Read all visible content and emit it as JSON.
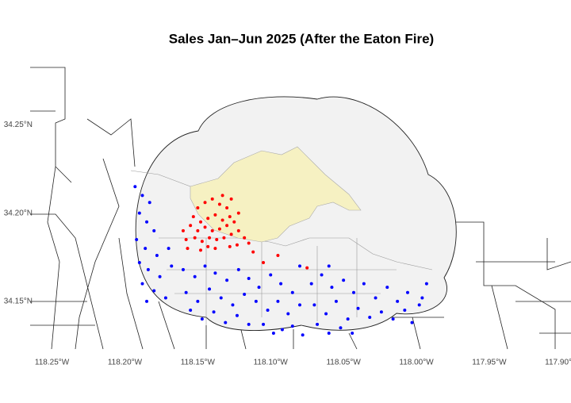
{
  "chart_data": {
    "type": "scatter",
    "title": "Sales Jan–Jun 2025 (After the Eaton Fire)",
    "xlim": [
      -118.265,
      -117.895
    ],
    "ylim": [
      34.123,
      34.287
    ],
    "grid": false,
    "xticks": [
      {
        "value": -118.25,
        "label": "118.25°W"
      },
      {
        "value": -118.2,
        "label": "118.20°W"
      },
      {
        "value": -118.15,
        "label": "118.15°W"
      },
      {
        "value": -118.1,
        "label": "118.10°W"
      },
      {
        "value": -118.05,
        "label": "118.05°W"
      },
      {
        "value": -118.0,
        "label": "118.00°W"
      },
      {
        "value": -117.95,
        "label": "117.95°W"
      },
      {
        "value": -117.9,
        "label": "117.90°W"
      }
    ],
    "yticks": [
      {
        "value": 34.15,
        "label": "34.15°N"
      },
      {
        "value": 34.2,
        "label": "34.20°N"
      },
      {
        "value": 34.25,
        "label": "34.25°N"
      }
    ],
    "series": [
      {
        "color": "#ff0000",
        "x": [
          -118.15,
          -118.145,
          -118.14,
          -118.135,
          -118.13,
          -118.128,
          -118.133,
          -118.138,
          -118.143,
          -118.148,
          -118.153,
          -118.155,
          -118.15,
          -118.145,
          -118.14,
          -118.135,
          -118.13,
          -118.125,
          -118.122,
          -118.127,
          -118.132,
          -118.137,
          -118.142,
          -118.147,
          -118.152,
          -118.158,
          -118.16,
          -118.118,
          -118.115,
          -118.123,
          -118.128,
          -118.138,
          -118.143,
          -118.148,
          -118.157,
          -118.133,
          -118.127,
          -118.122,
          -118.112,
          -118.105,
          -118.075,
          -118.095
        ],
        "values": [
          34.203,
          34.206,
          34.208,
          34.205,
          34.203,
          34.198,
          34.196,
          34.199,
          34.197,
          34.195,
          34.198,
          34.193,
          34.19,
          34.192,
          34.19,
          34.191,
          34.193,
          34.195,
          34.19,
          34.188,
          34.186,
          34.185,
          34.186,
          34.184,
          34.186,
          34.185,
          34.19,
          34.186,
          34.183,
          34.182,
          34.181,
          34.18,
          34.181,
          34.179,
          34.18,
          34.21,
          34.208,
          34.2,
          34.178,
          34.172,
          34.169,
          34.176
        ]
      },
      {
        "color": "#0000ff",
        "x": [
          -118.193,
          -118.188,
          -118.183,
          -118.19,
          -118.185,
          -118.18,
          -118.192,
          -118.186,
          -118.178,
          -118.19,
          -118.184,
          -118.176,
          -118.188,
          -118.18,
          -118.172,
          -118.185,
          -118.17,
          -118.168,
          -118.16,
          -118.152,
          -118.145,
          -118.138,
          -118.13,
          -118.122,
          -118.115,
          -118.108,
          -118.1,
          -118.093,
          -118.085,
          -118.158,
          -118.15,
          -118.142,
          -118.134,
          -118.126,
          -118.118,
          -118.11,
          -118.102,
          -118.095,
          -118.088,
          -118.08,
          -118.155,
          -118.147,
          -118.139,
          -118.131,
          -118.123,
          -118.115,
          -118.105,
          -118.098,
          -118.092,
          -118.085,
          -118.078,
          -118.072,
          -118.065,
          -118.058,
          -118.05,
          -118.043,
          -118.036,
          -118.028,
          -118.02,
          -118.013,
          -118.006,
          -117.998,
          -117.993,
          -118.07,
          -118.062,
          -118.055,
          -118.047,
          -118.04,
          -118.032,
          -118.024,
          -118.016,
          -118.008,
          -118.068,
          -118.06,
          -118.052,
          -118.044,
          -118.003,
          -117.996,
          -118.08,
          -118.06
        ],
        "values": [
          34.215,
          34.21,
          34.206,
          34.2,
          34.195,
          34.19,
          34.185,
          34.18,
          34.176,
          34.172,
          34.168,
          34.164,
          34.16,
          34.156,
          34.152,
          34.15,
          34.18,
          34.17,
          34.168,
          34.164,
          34.17,
          34.166,
          34.162,
          34.168,
          34.163,
          34.158,
          34.165,
          34.16,
          34.155,
          34.155,
          34.15,
          34.157,
          34.152,
          34.148,
          34.154,
          34.15,
          34.145,
          34.15,
          34.143,
          34.148,
          34.145,
          34.14,
          34.144,
          34.138,
          34.142,
          34.137,
          34.137,
          34.132,
          34.134,
          34.136,
          34.131,
          34.16,
          34.165,
          34.158,
          34.162,
          34.155,
          34.16,
          34.152,
          34.158,
          34.15,
          34.155,
          34.148,
          34.16,
          34.148,
          34.143,
          34.15,
          34.14,
          34.146,
          34.141,
          34.144,
          34.14,
          34.145,
          34.137,
          34.132,
          34.135,
          34.132,
          34.138,
          34.152,
          34.17,
          34.17
        ]
      }
    ]
  }
}
